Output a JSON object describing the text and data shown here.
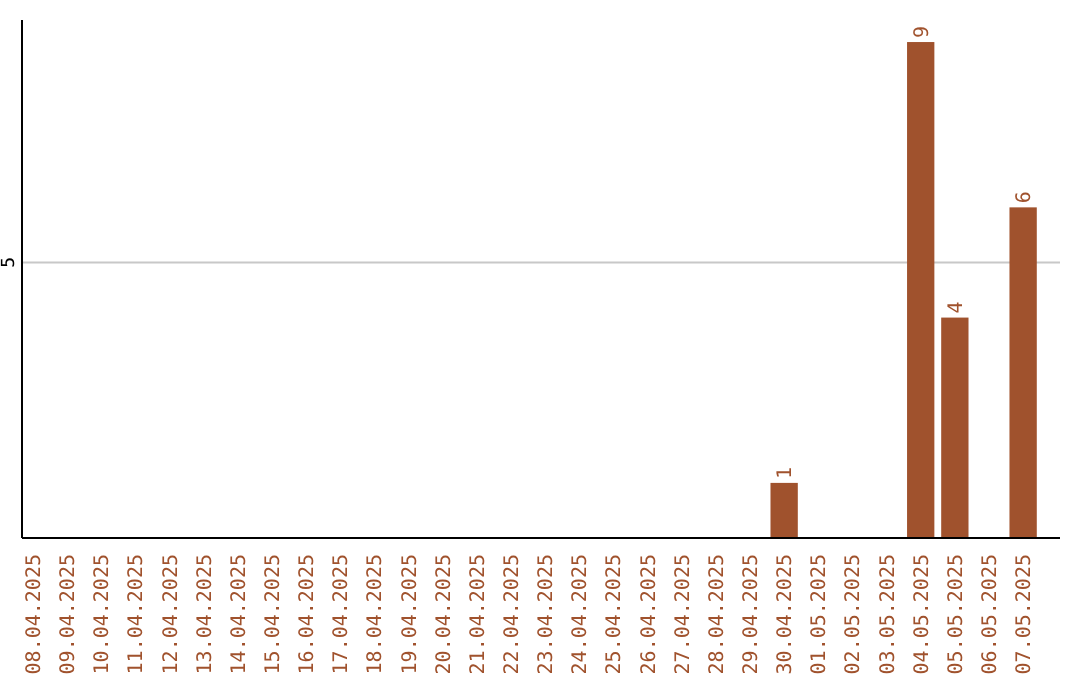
{
  "chart_data": {
    "type": "bar",
    "categories": [
      "08.04.2025",
      "09.04.2025",
      "10.04.2025",
      "11.04.2025",
      "12.04.2025",
      "13.04.2025",
      "14.04.2025",
      "15.04.2025",
      "16.04.2025",
      "17.04.2025",
      "18.04.2025",
      "19.04.2025",
      "20.04.2025",
      "21.04.2025",
      "22.04.2025",
      "23.04.2025",
      "24.04.2025",
      "25.04.2025",
      "26.04.2025",
      "27.04.2025",
      "28.04.2025",
      "29.04.2025",
      "30.04.2025",
      "01.05.2025",
      "02.05.2025",
      "03.05.2025",
      "04.05.2025",
      "05.05.2025",
      "06.05.2025",
      "07.05.2025"
    ],
    "values": [
      null,
      null,
      null,
      null,
      null,
      null,
      null,
      null,
      null,
      null,
      null,
      null,
      null,
      null,
      null,
      null,
      null,
      null,
      null,
      null,
      null,
      null,
      1,
      null,
      null,
      null,
      9,
      4,
      null,
      6
    ],
    "color": "#a0522d",
    "ylim": [
      0,
      9.4
    ],
    "yticks": [
      5
    ],
    "grid": "y",
    "data_labels": true
  }
}
